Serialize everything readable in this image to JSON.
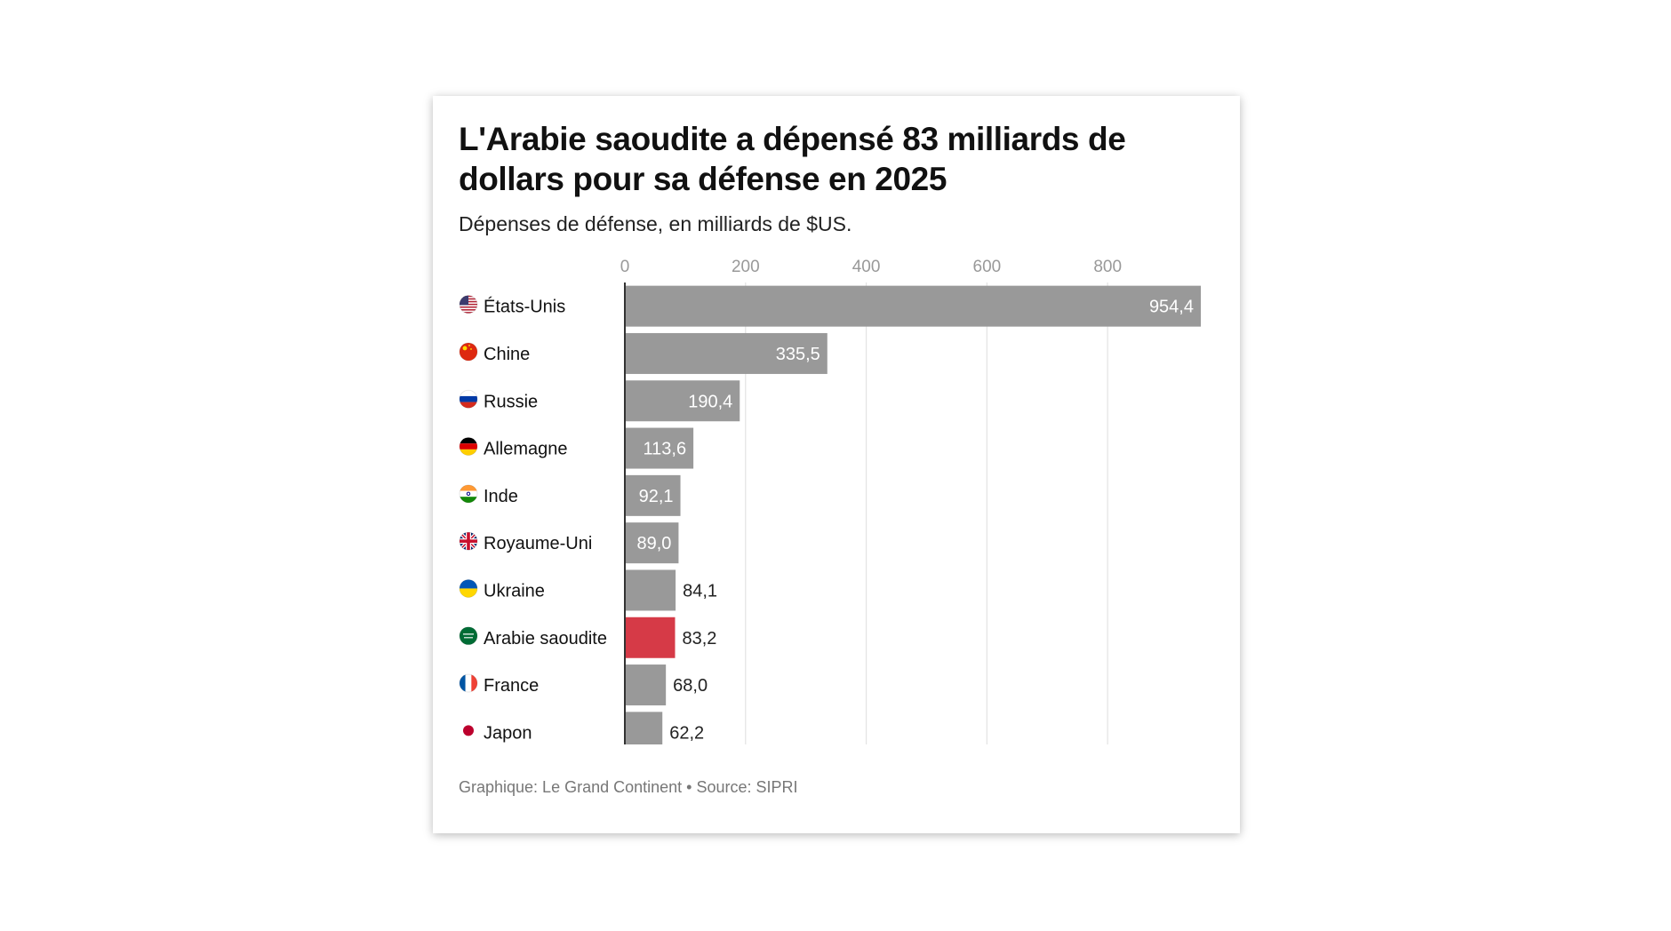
{
  "title": "L'Arabie saoudite a dépensé 83 milliards de dollars pour sa défense en 2025",
  "subtitle": "Dépenses de défense, en milliards de $US.",
  "footer": "Graphique: Le Grand Continent • Source: SIPRI",
  "colors": {
    "default_bar": "#999999",
    "highlight_bar": "#d63a47",
    "grid": "#e3e3e3",
    "axis": "#333333",
    "tick_text": "#999999"
  },
  "chart_data": {
    "type": "bar",
    "orientation": "horizontal",
    "categories": [
      "États-Unis",
      "Chine",
      "Russie",
      "Allemagne",
      "Inde",
      "Royaume-Uni",
      "Ukraine",
      "Arabie saoudite",
      "France",
      "Japon"
    ],
    "values": [
      954.4,
      335.5,
      190.4,
      113.6,
      92.1,
      89.0,
      84.1,
      83.2,
      68.0,
      62.2
    ],
    "value_labels": [
      "954,4",
      "335,5",
      "190,4",
      "113,6",
      "92,1",
      "89,0",
      "84,1",
      "83,2",
      "68,0",
      "62,2"
    ],
    "flag_icons": [
      "us-flag-icon",
      "china-flag-icon",
      "russia-flag-icon",
      "germany-flag-icon",
      "india-flag-icon",
      "uk-flag-icon",
      "ukraine-flag-icon",
      "saudi-arabia-flag-icon",
      "france-flag-icon",
      "japan-flag-icon"
    ],
    "highlight": "Arabie saoudite",
    "x_ticks": [
      0,
      200,
      400,
      600,
      800
    ],
    "x_tick_labels": [
      "0",
      "200",
      "400",
      "600",
      "800"
    ],
    "xlim": [
      0,
      954.4
    ],
    "grid": true,
    "x_axis_position": "top"
  }
}
